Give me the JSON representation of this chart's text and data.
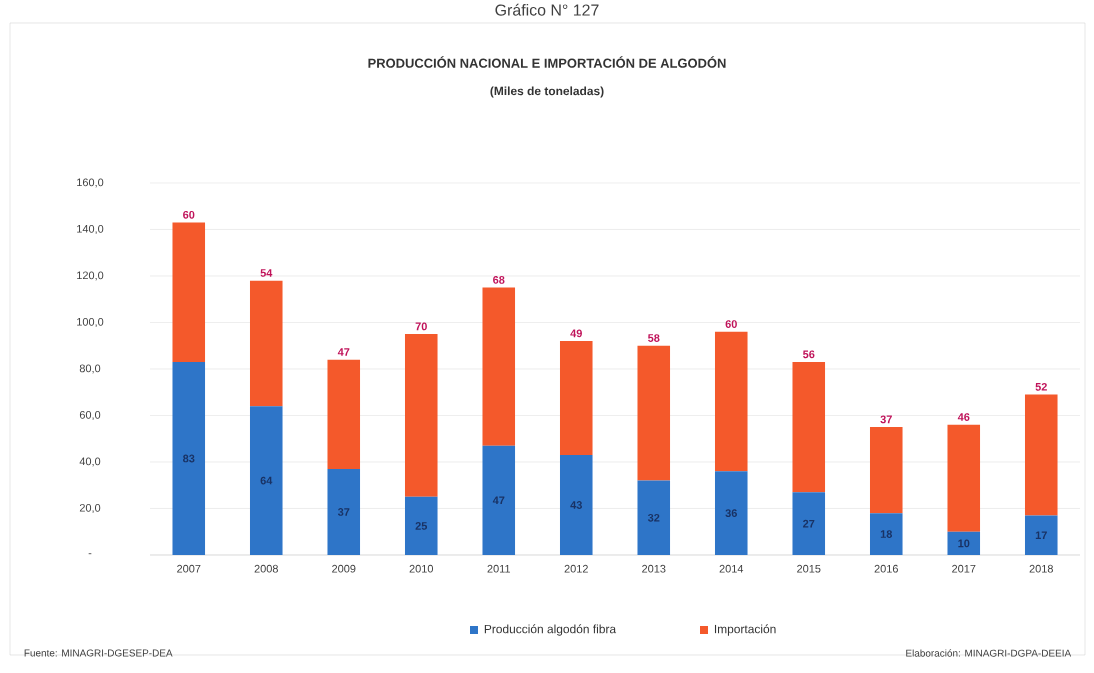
{
  "chart_data": {
    "type": "bar",
    "title": "PRODUCCIÓN NACIONAL E IMPORTACIÓN DE ALGODÓN",
    "subtitle": "(Miles de toneladas)",
    "annotations": [
      "Gráfico N° 127",
      "Fuente: MINAGRI-DGESEP-DEA",
      "Elaboración: MINAGRI-DGPA-DEEIA"
    ],
    "categories": [
      "2007",
      "2008",
      "2009",
      "2010",
      "2011",
      "2012",
      "2013",
      "2014",
      "2015",
      "2016",
      "2017",
      "2018"
    ],
    "stacked": true,
    "series": [
      {
        "name": "Producción algodón fibra",
        "color": "#2e75c8",
        "values": [
          83,
          64,
          37,
          25,
          47,
          43,
          32,
          36,
          27,
          18,
          10,
          17
        ]
      },
      {
        "name": "Importación",
        "color": "#f4592b",
        "values": [
          60,
          54,
          47,
          70,
          68,
          49,
          58,
          60,
          56,
          37,
          46,
          52
        ]
      }
    ],
    "ylim": [
      0,
      160
    ],
    "yticks": [
      {
        "value": 0,
        "label": "-"
      },
      {
        "value": 20,
        "label": "20,0"
      },
      {
        "value": 40,
        "label": "40,0"
      },
      {
        "value": 60,
        "label": "60,0"
      },
      {
        "value": 80,
        "label": "80,0"
      },
      {
        "value": 100,
        "label": "100,0"
      },
      {
        "value": 120,
        "label": "120,0"
      },
      {
        "value": 140,
        "label": "140,0"
      },
      {
        "value": 160,
        "label": "160,0"
      }
    ],
    "grid": "y",
    "legend": "bottom",
    "data_labels": true
  }
}
